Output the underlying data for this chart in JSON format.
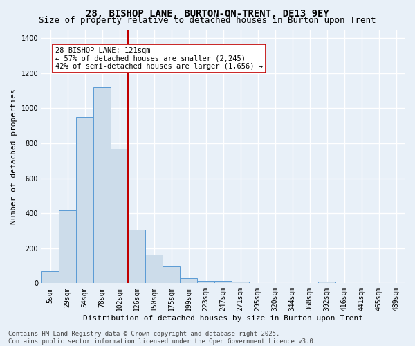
{
  "title": "28, BISHOP LANE, BURTON-ON-TRENT, DE13 9EY",
  "subtitle": "Size of property relative to detached houses in Burton upon Trent",
  "xlabel": "Distribution of detached houses by size in Burton upon Trent",
  "ylabel": "Number of detached properties",
  "categories": [
    "5sqm",
    "29sqm",
    "54sqm",
    "78sqm",
    "102sqm",
    "126sqm",
    "150sqm",
    "175sqm",
    "199sqm",
    "223sqm",
    "247sqm",
    "271sqm",
    "295sqm",
    "320sqm",
    "344sqm",
    "368sqm",
    "392sqm",
    "416sqm",
    "441sqm",
    "465sqm",
    "489sqm"
  ],
  "bar_heights": [
    68,
    415,
    950,
    1120,
    770,
    305,
    165,
    95,
    30,
    12,
    12,
    10,
    0,
    0,
    0,
    0,
    8,
    0,
    0,
    0,
    0
  ],
  "bar_color": "#ccdcea",
  "bar_edge_color": "#5b9bd5",
  "vline_x_index": 4,
  "vline_color": "#c00000",
  "annotation_title": "28 BISHOP LANE: 121sqm",
  "annotation_line1": "← 57% of detached houses are smaller (2,245)",
  "annotation_line2": "42% of semi-detached houses are larger (1,656) →",
  "annotation_box_facecolor": "#ffffff",
  "annotation_box_edgecolor": "#c00000",
  "ylim": [
    0,
    1450
  ],
  "yticks": [
    0,
    200,
    400,
    600,
    800,
    1000,
    1200,
    1400
  ],
  "footer1": "Contains HM Land Registry data © Crown copyright and database right 2025.",
  "footer2": "Contains public sector information licensed under the Open Government Licence v3.0.",
  "background_color": "#e8f0f8",
  "grid_color": "#ffffff",
  "title_fontsize": 10,
  "subtitle_fontsize": 9,
  "ylabel_fontsize": 8,
  "xlabel_fontsize": 8,
  "tick_fontsize": 7,
  "annotation_fontsize": 7.5,
  "footer_fontsize": 6.5
}
